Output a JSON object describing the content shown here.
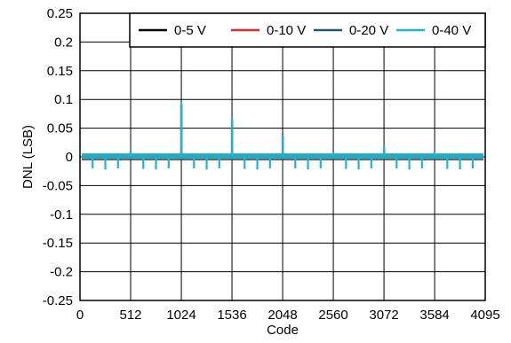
{
  "chart_data": {
    "type": "line",
    "title": "",
    "xlabel": "Code",
    "ylabel": "DNL (LSB)",
    "xlim": [
      0,
      4095
    ],
    "ylim": [
      -0.25,
      0.25
    ],
    "grid": true,
    "legend_position": "top-right",
    "x_ticks": [
      0,
      512,
      1024,
      1536,
      2048,
      2560,
      3072,
      3584,
      4095
    ],
    "x_tick_labels": [
      "0",
      "512",
      "1024",
      "1536",
      "2048",
      "2560",
      "3072",
      "3584",
      "4095"
    ],
    "y_ticks": [
      0.25,
      0.2,
      0.15,
      0.1,
      0.05,
      0,
      -0.05,
      -0.1,
      -0.15,
      -0.2,
      -0.25
    ],
    "y_tick_labels": [
      "0.25",
      "0.2",
      "0.15",
      "0.1",
      "0.05",
      "0",
      "-0.05",
      "-0.1",
      "-0.15",
      "-0.2",
      "-0.25"
    ],
    "noise_band": [
      -0.005,
      0.005
    ],
    "series": [
      {
        "name": "0-5 V",
        "color": "#000000",
        "spikes": [
          {
            "x": 512,
            "y": 0.01
          },
          {
            "x": 1024,
            "y": 0.09
          },
          {
            "x": 1536,
            "y": 0.06
          },
          {
            "x": 2048,
            "y": 0.035
          },
          {
            "x": 3072,
            "y": 0.015
          }
        ]
      },
      {
        "name": "0-10 V",
        "color": "#e8262b",
        "spikes": [
          {
            "x": 1024,
            "y": 0.09
          },
          {
            "x": 1536,
            "y": 0.065
          },
          {
            "x": 2048,
            "y": 0.04
          },
          {
            "x": 3072,
            "y": 0.018
          }
        ]
      },
      {
        "name": "0-20 V",
        "color": "#1d5a6b",
        "spikes": [
          {
            "x": 1024,
            "y": 0.092
          },
          {
            "x": 1536,
            "y": 0.066
          },
          {
            "x": 2048,
            "y": 0.036
          },
          {
            "x": 3072,
            "y": 0.017
          }
        ]
      },
      {
        "name": "0-40 V",
        "color": "#1fb5cc",
        "spikes": [
          {
            "x": 128,
            "y": -0.02
          },
          {
            "x": 256,
            "y": -0.022
          },
          {
            "x": 384,
            "y": -0.02
          },
          {
            "x": 512,
            "y": 0.01
          },
          {
            "x": 640,
            "y": -0.021
          },
          {
            "x": 768,
            "y": -0.022
          },
          {
            "x": 896,
            "y": -0.02
          },
          {
            "x": 1024,
            "y": 0.096
          },
          {
            "x": 1152,
            "y": -0.02
          },
          {
            "x": 1280,
            "y": -0.022
          },
          {
            "x": 1408,
            "y": -0.02
          },
          {
            "x": 1536,
            "y": 0.068
          },
          {
            "x": 1664,
            "y": -0.021
          },
          {
            "x": 1792,
            "y": -0.022
          },
          {
            "x": 1920,
            "y": -0.02
          },
          {
            "x": 2048,
            "y": 0.038
          },
          {
            "x": 2176,
            "y": -0.02
          },
          {
            "x": 2304,
            "y": -0.022
          },
          {
            "x": 2432,
            "y": -0.02
          },
          {
            "x": 2560,
            "y": 0.008
          },
          {
            "x": 2688,
            "y": -0.021
          },
          {
            "x": 2816,
            "y": -0.022
          },
          {
            "x": 2944,
            "y": -0.02
          },
          {
            "x": 3072,
            "y": 0.019
          },
          {
            "x": 3200,
            "y": -0.02
          },
          {
            "x": 3328,
            "y": -0.022
          },
          {
            "x": 3456,
            "y": -0.02
          },
          {
            "x": 3584,
            "y": 0.008
          },
          {
            "x": 3712,
            "y": -0.021
          },
          {
            "x": 3840,
            "y": -0.022
          },
          {
            "x": 3968,
            "y": -0.02
          }
        ]
      }
    ]
  }
}
